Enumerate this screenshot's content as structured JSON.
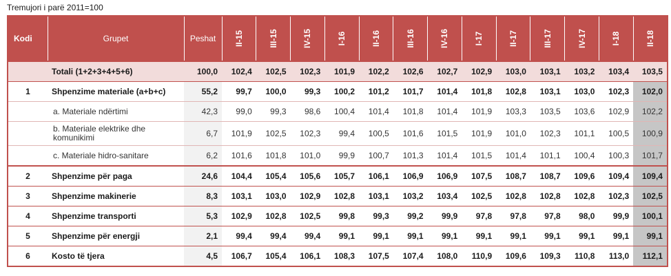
{
  "caption": "Tremujori i parë 2011=100",
  "headers": {
    "kodi": "Kodi",
    "grupet": "Grupet",
    "peshat": "Peshat",
    "periods": [
      "II-15",
      "III-15",
      "IV-15",
      "I-16",
      "II-16",
      "III-16",
      "IV-16",
      "I-17",
      "II-17",
      "III-17",
      "IV-17",
      "I-18",
      "II-18"
    ]
  },
  "rows": [
    {
      "type": "total",
      "kodi": "",
      "grupet": "Totali (1+2+3+4+5+6)",
      "peshat": "100,0",
      "values": [
        "102,4",
        "102,5",
        "102,3",
        "101,9",
        "102,2",
        "102,6",
        "102,7",
        "102,9",
        "103,0",
        "103,1",
        "103,2",
        "103,4",
        "103,5"
      ]
    },
    {
      "type": "main",
      "kodi": "1",
      "grupet": "Shpenzime materiale (a+b+c)",
      "peshat": "55,2",
      "values": [
        "99,7",
        "100,0",
        "99,3",
        "100,2",
        "101,2",
        "101,7",
        "101,4",
        "101,8",
        "102,8",
        "103,1",
        "103,0",
        "102,3",
        "102,0"
      ]
    },
    {
      "type": "sub",
      "kodi": "",
      "grupet": "a. Materiale ndërtimi",
      "peshat": "42,3",
      "values": [
        "99,0",
        "99,3",
        "98,6",
        "100,4",
        "101,4",
        "101,8",
        "101,4",
        "101,9",
        "103,3",
        "103,5",
        "103,6",
        "102,9",
        "102,2"
      ]
    },
    {
      "type": "sub tall",
      "kodi": "",
      "grupet": "b. Materiale elektrike dhe komunikimi",
      "peshat": "6,7",
      "values": [
        "101,9",
        "102,5",
        "102,3",
        "99,4",
        "100,5",
        "101,6",
        "101,5",
        "101,9",
        "101,0",
        "102,3",
        "101,1",
        "100,5",
        "100,9"
      ]
    },
    {
      "type": "sub",
      "kodi": "",
      "grupet": "c. Materiale hidro-sanitare",
      "peshat": "6,2",
      "values": [
        "101,6",
        "101,8",
        "101,0",
        "99,9",
        "100,7",
        "101,3",
        "101,4",
        "101,5",
        "101,4",
        "101,1",
        "100,4",
        "100,3",
        "101,7"
      ]
    },
    {
      "type": "main r2",
      "kodi": "2",
      "grupet": "Shpenzime për paga",
      "peshat": "24,6",
      "values": [
        "104,4",
        "105,4",
        "105,6",
        "105,7",
        "106,1",
        "106,9",
        "106,9",
        "107,5",
        "108,7",
        "108,7",
        "109,6",
        "109,4",
        "109,4"
      ]
    },
    {
      "type": "main",
      "kodi": "3",
      "grupet": "Shpenzime makinerie",
      "peshat": "8,3",
      "values": [
        "103,1",
        "103,0",
        "102,9",
        "102,8",
        "103,1",
        "103,2",
        "103,4",
        "102,5",
        "102,8",
        "102,8",
        "102,8",
        "102,3",
        "102,5"
      ]
    },
    {
      "type": "main",
      "kodi": "4",
      "grupet": "Shpenzime transporti",
      "peshat": "5,3",
      "values": [
        "102,9",
        "102,8",
        "102,5",
        "99,8",
        "99,3",
        "99,2",
        "99,9",
        "97,8",
        "97,8",
        "97,8",
        "98,0",
        "99,9",
        "100,1"
      ]
    },
    {
      "type": "main",
      "kodi": "5",
      "grupet": "Shpenzime për energji",
      "peshat": "2,1",
      "values": [
        "99,4",
        "99,4",
        "99,4",
        "99,1",
        "99,1",
        "99,1",
        "99,1",
        "99,1",
        "99,1",
        "99,1",
        "99,1",
        "99,1",
        "99,1"
      ]
    },
    {
      "type": "main",
      "kodi": "6",
      "grupet": "Kosto të tjera",
      "peshat": "4,5",
      "values": [
        "106,7",
        "105,4",
        "106,1",
        "108,3",
        "107,5",
        "107,4",
        "108,0",
        "110,9",
        "109,6",
        "109,3",
        "110,8",
        "113,0",
        "112,1"
      ]
    }
  ]
}
